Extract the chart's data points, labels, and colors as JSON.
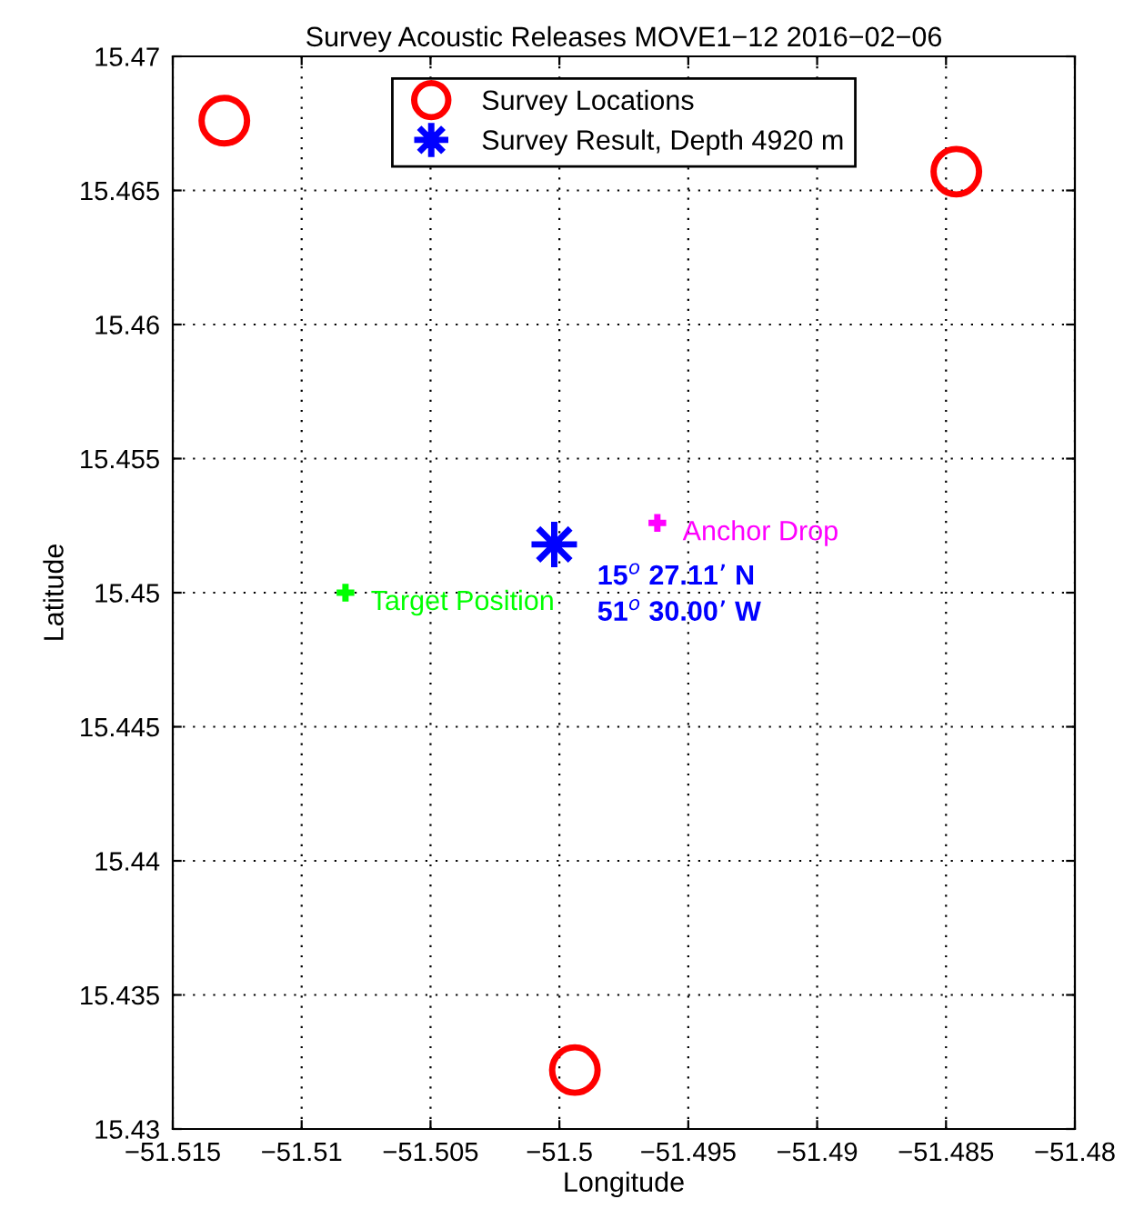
{
  "chart_data": {
    "type": "scatter",
    "title": "Survey Acoustic Releases MOVE1−12 2016−02−06",
    "xlabel": "Longitude",
    "ylabel": "Latitude",
    "series": [
      {
        "name": "Survey Locations",
        "color": "#ff0000",
        "marker": "circle",
        "x": [
          -51.513,
          -51.4846,
          -51.4994
        ],
        "values": [
          15.4676,
          15.4657,
          15.4322
        ]
      },
      {
        "name": "Survey Result, Depth 4920 m",
        "color": "#0000ff",
        "marker": "star",
        "x": [
          -51.5002
        ],
        "values": [
          15.4518
        ]
      },
      {
        "color": "#ff00ff",
        "marker": "cross",
        "x": [
          -51.4962
        ],
        "values": [
          15.4526
        ]
      },
      {
        "color": "#00ff00",
        "marker": "cross",
        "x": [
          -51.5083
        ],
        "values": [
          15.45
        ]
      }
    ],
    "annotations": [
      {
        "text": "15$^{o}$ 27.11’ N\n51$^{o}$ 30.00’ W",
        "x": -51.5002,
        "y": 15.4518
      },
      {
        "text": "Anchor Drop",
        "x": -51.4962,
        "y": 15.4526
      },
      {
        "text": "Target Position",
        "x": -51.5083,
        "y": 15.45
      }
    ],
    "xlim": [
      -51.515,
      -51.48
    ],
    "xticks": [
      -51.515,
      -51.51,
      -51.505,
      -51.5,
      -51.495,
      -51.49,
      -51.485,
      -51.48
    ],
    "ylim": [
      15.43,
      15.47
    ],
    "yticks": [
      15.43,
      15.435,
      15.44,
      15.445,
      15.45,
      15.455,
      15.46,
      15.465,
      15.47
    ],
    "grid": true,
    "legend": "top"
  }
}
